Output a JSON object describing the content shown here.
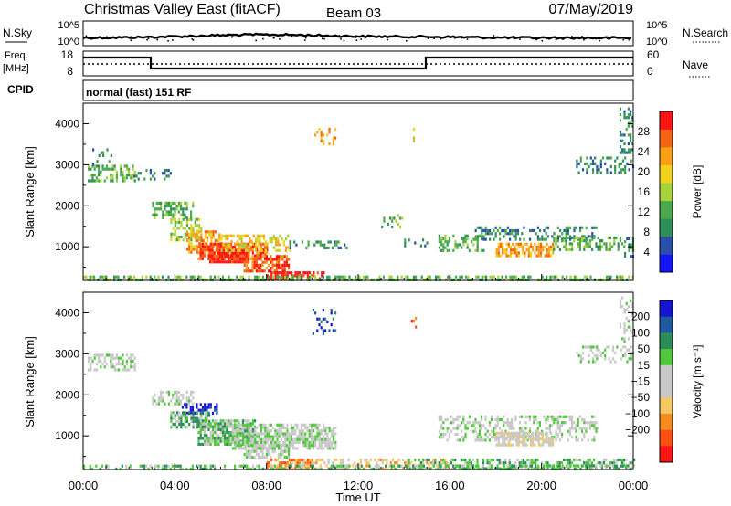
{
  "header": {
    "title": "Christmas Valley East (fitACF)",
    "beam": "Beam 03",
    "date": "07/May/2019"
  },
  "strip_nsky": {
    "left_label": "N.Sky",
    "right_label": "N.Search",
    "ticks_left": [
      "10^5",
      "10^0"
    ],
    "ticks_right": [
      "10^5",
      "10^0"
    ]
  },
  "strip_freq": {
    "left_label_1": "Freq.",
    "left_label_2": "[MHz]",
    "right_label": "Nave",
    "ticks_left": [
      "18",
      "8"
    ],
    "ticks_right": [
      "60",
      "0"
    ]
  },
  "cpid": {
    "label": "CPID",
    "text": "normal (fast) 151 RF"
  },
  "colors": {
    "power": [
      "#1414ff",
      "#2a4fa8",
      "#2f8f5a",
      "#4ca84c",
      "#a8d23c",
      "#f0d21e",
      "#f7a014",
      "#f56414",
      "#ff1414"
    ],
    "velocity": [
      "#1414d2",
      "#1e5aa0",
      "#2d8c5a",
      "#50c83c",
      "#c8c8c8",
      "#c8c8c8",
      "#f5c864",
      "#f58c1e",
      "#ff5014",
      "#ff1414"
    ]
  },
  "chart_data": [
    {
      "type": "heatmap",
      "panel": "power",
      "ylabel": "Slant Range [km]",
      "ylim": [
        180,
        4500
      ],
      "xlim_hours": [
        0,
        24
      ],
      "yticks": [
        1000,
        2000,
        3000,
        4000
      ],
      "colorbar": {
        "label": "Power [dB]",
        "range": [
          0,
          32
        ],
        "ticks": [
          4,
          8,
          12,
          16,
          20,
          24,
          28
        ]
      },
      "regions": [
        {
          "t0": 0.2,
          "t1": 2.3,
          "r0": 2600,
          "r1": 3000,
          "level": 3,
          "density": 0.45
        },
        {
          "t0": 0.4,
          "t1": 1.2,
          "r0": 3000,
          "r1": 3400,
          "level": 2,
          "density": 0.25
        },
        {
          "t0": 2.2,
          "t1": 3.8,
          "r0": 2650,
          "r1": 2900,
          "level": 2,
          "density": 0.3
        },
        {
          "t0": 3.0,
          "t1": 4.8,
          "r0": 1700,
          "r1": 2100,
          "level": 3,
          "density": 0.5
        },
        {
          "t0": 3.8,
          "t1": 5.2,
          "r0": 1200,
          "r1": 1700,
          "level": 4,
          "density": 0.55
        },
        {
          "t0": 4.5,
          "t1": 6.0,
          "r0": 900,
          "r1": 1400,
          "level": 6,
          "density": 0.6
        },
        {
          "t0": 5.0,
          "t1": 8.0,
          "r0": 700,
          "r1": 1100,
          "level": 7,
          "density": 0.75
        },
        {
          "t0": 5.5,
          "t1": 7.2,
          "r0": 650,
          "r1": 950,
          "level": 8,
          "density": 0.9
        },
        {
          "t0": 6.0,
          "t1": 9.0,
          "r0": 900,
          "r1": 1300,
          "level": 5,
          "density": 0.45
        },
        {
          "t0": 7.0,
          "t1": 9.0,
          "r0": 400,
          "r1": 800,
          "level": 7,
          "density": 0.75
        },
        {
          "t0": 8.0,
          "t1": 10.5,
          "r0": 200,
          "r1": 400,
          "level": 8,
          "density": 0.7
        },
        {
          "t0": 9.0,
          "t1": 11.5,
          "r0": 1000,
          "r1": 1150,
          "level": 2,
          "density": 0.35
        },
        {
          "t0": 13.0,
          "t1": 14.0,
          "r0": 1500,
          "r1": 1800,
          "level": 3,
          "density": 0.3
        },
        {
          "t0": 14.0,
          "t1": 15.0,
          "r0": 1000,
          "r1": 1200,
          "level": 2,
          "density": 0.25
        },
        {
          "t0": 15.5,
          "t1": 17.5,
          "r0": 900,
          "r1": 1300,
          "level": 3,
          "density": 0.4
        },
        {
          "t0": 17.0,
          "t1": 22.5,
          "r0": 1200,
          "r1": 1500,
          "level": 2,
          "density": 0.35
        },
        {
          "t0": 18.0,
          "t1": 20.5,
          "r0": 800,
          "r1": 1100,
          "level": 6,
          "density": 0.65
        },
        {
          "t0": 20.5,
          "t1": 23.6,
          "r0": 950,
          "r1": 1250,
          "level": 3,
          "density": 0.4
        },
        {
          "t0": 23.6,
          "t1": 24.0,
          "r0": 800,
          "r1": 1300,
          "level": 2,
          "density": 0.5
        },
        {
          "t0": 21.5,
          "t1": 24.0,
          "r0": 2800,
          "r1": 3200,
          "level": 2,
          "density": 0.3
        },
        {
          "t0": 23.4,
          "t1": 24.0,
          "r0": 3300,
          "r1": 4400,
          "level": 2,
          "density": 0.3
        },
        {
          "t0": 0.0,
          "t1": 24.0,
          "r0": 180,
          "r1": 300,
          "level": 3,
          "density": 0.55
        },
        {
          "t0": 10.0,
          "t1": 11.0,
          "r0": 3500,
          "r1": 3900,
          "level": 6,
          "density": 0.2
        },
        {
          "t0": 14.3,
          "t1": 14.5,
          "r0": 3500,
          "r1": 3900,
          "level": 5,
          "density": 0.3
        }
      ]
    },
    {
      "type": "heatmap",
      "panel": "velocity",
      "ylabel": "Slant Range [km]",
      "xlabel": "Time UT",
      "ylim": [
        180,
        4500
      ],
      "xlim_hours": [
        0,
        24
      ],
      "yticks": [
        1000,
        2000,
        3000,
        4000
      ],
      "xticks": [
        "00:00",
        "04:00",
        "08:00",
        "12:00",
        "16:00",
        "20:00",
        "00:00"
      ],
      "colorbar": {
        "label": "Velocity [m s⁻¹]",
        "range": [
          -250,
          250
        ],
        "ticks": [
          "200",
          "100",
          "50",
          "15",
          "−15",
          "−50",
          "−100",
          "−200"
        ]
      },
      "regions": [
        {
          "t0": 0.2,
          "t1": 2.3,
          "r0": 2600,
          "r1": 3000,
          "level": 4,
          "density": 0.45
        },
        {
          "t0": 3.0,
          "t1": 4.8,
          "r0": 1800,
          "r1": 2100,
          "level": 4,
          "density": 0.5
        },
        {
          "t0": 4.3,
          "t1": 5.8,
          "r0": 1550,
          "r1": 1800,
          "level": 0,
          "density": 0.7
        },
        {
          "t0": 3.8,
          "t1": 5.5,
          "r0": 1200,
          "r1": 1600,
          "level": 3,
          "density": 0.7
        },
        {
          "t0": 5.0,
          "t1": 7.5,
          "r0": 800,
          "r1": 1400,
          "level": 3,
          "density": 0.8
        },
        {
          "t0": 6.5,
          "t1": 11.0,
          "r0": 700,
          "r1": 1300,
          "level": 4,
          "density": 0.7
        },
        {
          "t0": 7.0,
          "t1": 9.0,
          "r0": 450,
          "r1": 800,
          "level": 4,
          "density": 0.7
        },
        {
          "t0": 8.0,
          "t1": 10.0,
          "r0": 200,
          "r1": 450,
          "level": 7,
          "density": 0.7
        },
        {
          "t0": 9.0,
          "t1": 16.0,
          "r0": 200,
          "r1": 450,
          "level": 6,
          "density": 0.45
        },
        {
          "t0": 14.0,
          "t1": 24.0,
          "r0": 180,
          "r1": 450,
          "level": 3,
          "density": 0.5
        },
        {
          "t0": 15.5,
          "t1": 22.5,
          "r0": 900,
          "r1": 1500,
          "level": 4,
          "density": 0.45
        },
        {
          "t0": 18.0,
          "t1": 20.5,
          "r0": 800,
          "r1": 1100,
          "level": 5,
          "density": 0.6
        },
        {
          "t0": 21.5,
          "t1": 24.0,
          "r0": 2800,
          "r1": 3200,
          "level": 4,
          "density": 0.35
        },
        {
          "t0": 23.4,
          "t1": 24.0,
          "r0": 3300,
          "r1": 4400,
          "level": 4,
          "density": 0.3
        },
        {
          "t0": 0.0,
          "t1": 24.0,
          "r0": 180,
          "r1": 300,
          "level": 3,
          "density": 0.45
        },
        {
          "t0": 10.0,
          "t1": 11.0,
          "r0": 3500,
          "r1": 4100,
          "level": 1,
          "density": 0.2
        },
        {
          "t0": 14.3,
          "t1": 14.5,
          "r0": 3500,
          "r1": 3900,
          "level": 8,
          "density": 0.3
        }
      ]
    }
  ]
}
